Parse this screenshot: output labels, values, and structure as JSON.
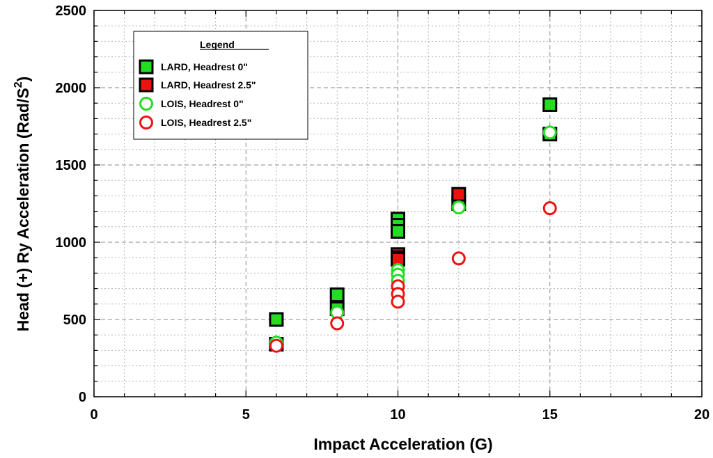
{
  "chart_data": {
    "type": "scatter",
    "title": "",
    "xlabel": "Impact Acceleration (G)",
    "ylabel_main": "Head (+) Ry Acceleration  (Rad/S",
    "ylabel_sup": "2",
    "ylabel_close": ")",
    "xlim": [
      0,
      20
    ],
    "ylim": [
      0,
      2500
    ],
    "x_ticks": [
      "0",
      "5",
      "10",
      "15",
      "20"
    ],
    "y_ticks": [
      "0",
      "500",
      "1000",
      "1500",
      "2000",
      "2500"
    ],
    "grid": true,
    "legend": {
      "title": "Legend",
      "placement": "top-left"
    },
    "series": [
      {
        "name": "LARD, Headrest 0\"",
        "marker": "square",
        "color": "#22dd22",
        "points": [
          [
            6,
            500
          ],
          [
            6,
            340
          ],
          [
            8,
            660
          ],
          [
            8,
            570
          ],
          [
            10,
            1150
          ],
          [
            10,
            1110
          ],
          [
            10,
            1070
          ],
          [
            12,
            1250
          ],
          [
            15,
            1890
          ],
          [
            15,
            1700
          ]
        ]
      },
      {
        "name": "LARD,  Headrest 2.5\"",
        "marker": "square",
        "color": "#ee1111",
        "points": [
          [
            10,
            920
          ],
          [
            10,
            900
          ],
          [
            10,
            890
          ],
          [
            12,
            1310
          ]
        ]
      },
      {
        "name": "LOIS,  Headrest 0\"",
        "marker": "circle",
        "color": "#22dd22",
        "points": [
          [
            6,
            350
          ],
          [
            8,
            545
          ],
          [
            10,
            820
          ],
          [
            10,
            790
          ],
          [
            10,
            750
          ],
          [
            12,
            1225
          ],
          [
            15,
            1710
          ]
        ]
      },
      {
        "name": "LOIS,  Headrest 2.5\"",
        "marker": "circle",
        "color": "#ee1111",
        "points": [
          [
            6,
            330
          ],
          [
            8,
            475
          ],
          [
            10,
            715
          ],
          [
            10,
            665
          ],
          [
            10,
            615
          ],
          [
            12,
            895
          ],
          [
            15,
            1220
          ]
        ]
      }
    ]
  }
}
